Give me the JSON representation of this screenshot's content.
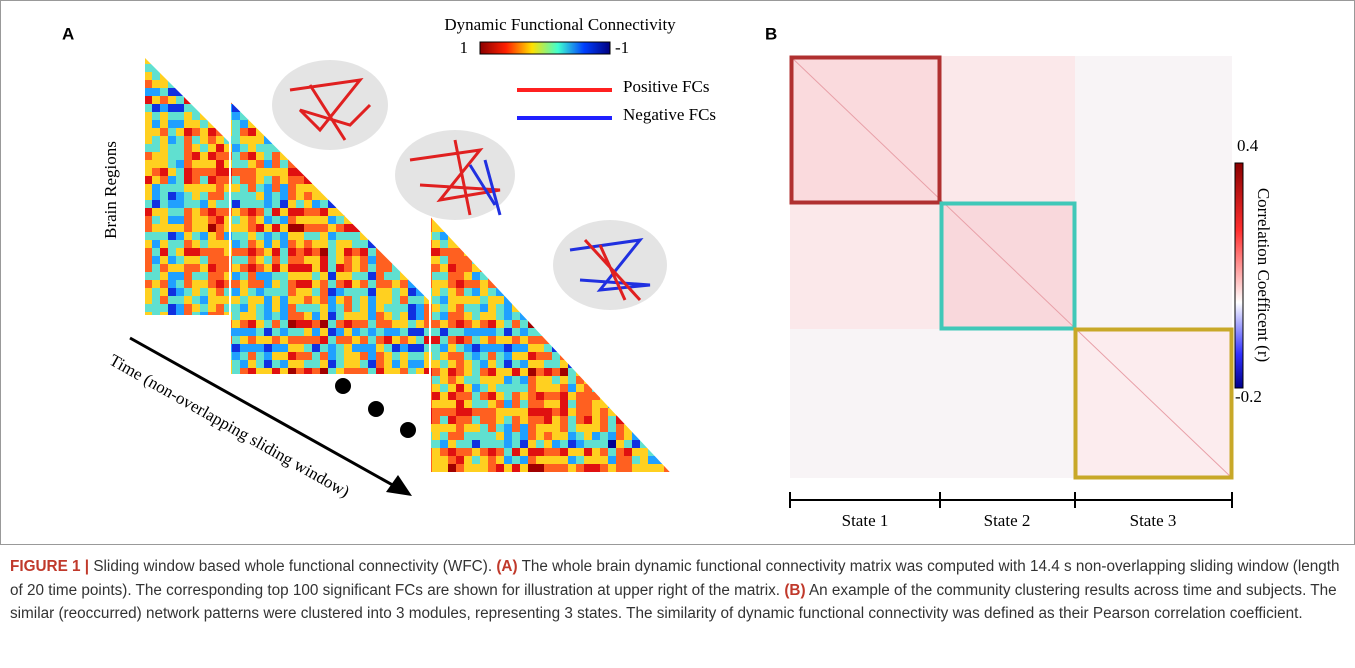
{
  "panel_a": {
    "label": "A",
    "colorbar_title": "Dynamic Functional Connectivity",
    "colorbar_max": "1",
    "colorbar_min": "-1",
    "legend": [
      "Positive FCs",
      "Negative FCs"
    ],
    "y_label": "Brain Regions",
    "arrow_label": "Time (non-overlapping sliding window)"
  },
  "panel_b": {
    "label": "B",
    "colorbar_max": "0.4",
    "colorbar_min": "-0.2",
    "colorbar_label": "Correlation Coefficent (r)",
    "states": [
      "State 1",
      "State 2",
      "State 3"
    ]
  },
  "caption": {
    "figure": "FIGURE 1 |",
    "title": "Sliding window based whole functional connectivity (WFC).",
    "a_tag": "(A)",
    "a_text": "The whole brain dynamic functional connectivity matrix was computed with 14.4 s non-overlapping sliding window (length of 20 time points). The corresponding top 100 significant FCs are shown for illustration at upper right of the matrix.",
    "b_tag": "(B)",
    "b_text": "An example of the community clustering results across time and subjects. The similar (reoccurred) network patterns were clustered into 3 modules, representing 3 states. The similarity of dynamic functional connectivity was defined as their Pearson correlation coefficient."
  }
}
